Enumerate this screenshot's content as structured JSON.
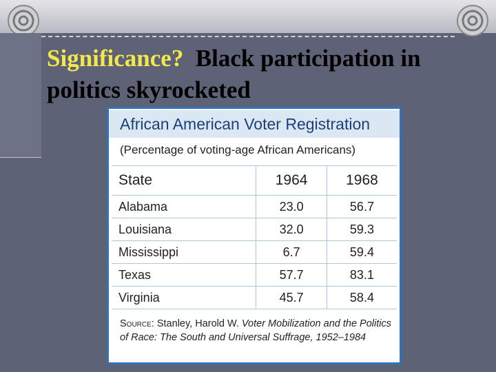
{
  "slide_title": {
    "accent": "Significance?",
    "text": "Black participation in politics skyrocketed"
  },
  "table": {
    "title": "African American Voter Registration",
    "subtitle": "(Percentage of voting-age African Americans)",
    "headers": [
      "State",
      "1964",
      "1968"
    ],
    "rows": [
      [
        "Alabama",
        "23.0",
        "56.7"
      ],
      [
        "Louisiana",
        "32.0",
        "59.3"
      ],
      [
        "Mississippi",
        "6.7",
        "59.4"
      ],
      [
        "Texas",
        "57.7",
        "83.1"
      ],
      [
        "Virginia",
        "45.7",
        "58.4"
      ]
    ],
    "source": {
      "label": "Source:",
      "author": "Stanley, Harold W.",
      "work": "Voter Mobilization and the Politics of Race: The South and Universal Suffrage,",
      "years": "1952–1984"
    }
  }
}
